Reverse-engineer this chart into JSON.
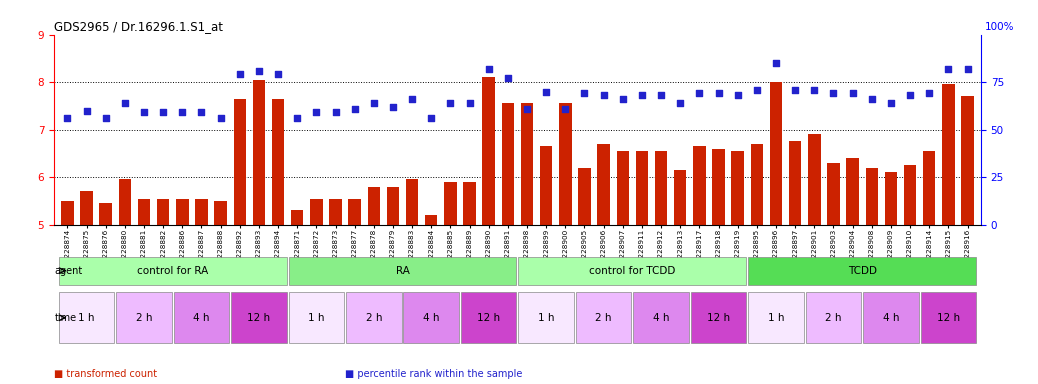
{
  "title": "GDS2965 / Dr.16296.1.S1_at",
  "samples": [
    "GSM228874",
    "GSM228875",
    "GSM228876",
    "GSM228880",
    "GSM228881",
    "GSM228882",
    "GSM228886",
    "GSM228887",
    "GSM228888",
    "GSM228892",
    "GSM228893",
    "GSM228894",
    "GSM228871",
    "GSM228872",
    "GSM228873",
    "GSM228877",
    "GSM228878",
    "GSM228879",
    "GSM228883",
    "GSM228884",
    "GSM228885",
    "GSM228889",
    "GSM228890",
    "GSM228891",
    "GSM228898",
    "GSM228899",
    "GSM228900",
    "GSM228905",
    "GSM228906",
    "GSM228907",
    "GSM228911",
    "GSM228912",
    "GSM228913",
    "GSM228917",
    "GSM228918",
    "GSM228919",
    "GSM228895",
    "GSM228896",
    "GSM228897",
    "GSM228901",
    "GSM228903",
    "GSM228904",
    "GSM228908",
    "GSM228909",
    "GSM228910",
    "GSM228914",
    "GSM228915",
    "GSM228916"
  ],
  "bar_values": [
    5.5,
    5.7,
    5.45,
    5.95,
    5.55,
    5.55,
    5.55,
    5.55,
    5.5,
    7.65,
    8.05,
    7.65,
    5.3,
    5.55,
    5.55,
    5.55,
    5.8,
    5.8,
    5.95,
    5.2,
    5.9,
    5.9,
    8.1,
    7.55,
    7.55,
    6.65,
    7.55,
    6.2,
    6.7,
    6.55,
    6.55,
    6.55,
    6.15,
    6.65,
    6.6,
    6.55,
    6.7,
    8.0,
    6.75,
    6.9,
    6.3,
    6.4,
    6.2,
    6.1,
    6.25,
    6.55,
    7.95,
    7.7
  ],
  "dot_values_pct": [
    56,
    60,
    56,
    64,
    59,
    59,
    59,
    59,
    56,
    79,
    81,
    79,
    56,
    59,
    59,
    61,
    64,
    62,
    66,
    56,
    64,
    64,
    82,
    77,
    61,
    70,
    61,
    69,
    68,
    66,
    68,
    68,
    64,
    69,
    69,
    68,
    71,
    85,
    71,
    71,
    69,
    69,
    66,
    64,
    68,
    69,
    82,
    82
  ],
  "bar_color": "#cc2200",
  "dot_color": "#2222cc",
  "ylim_left": [
    5,
    9
  ],
  "ylim_right": [
    0,
    100
  ],
  "yticks_left": [
    5,
    6,
    7,
    8,
    9
  ],
  "yticks_right": [
    0,
    25,
    50,
    75
  ],
  "right_axis_top_label": "100%",
  "agent_groups": [
    {
      "label": "control for RA",
      "start": 0,
      "end": 11,
      "color": "#aaffaa"
    },
    {
      "label": "RA",
      "start": 12,
      "end": 23,
      "color": "#88ee88"
    },
    {
      "label": "control for TCDD",
      "start": 24,
      "end": 35,
      "color": "#aaffaa"
    },
    {
      "label": "TCDD",
      "start": 36,
      "end": 47,
      "color": "#55dd55"
    }
  ],
  "time_labels_order": [
    "1 h",
    "2 h",
    "4 h",
    "12 h"
  ],
  "time_colors_list": [
    "#f8e8ff",
    "#eebbff",
    "#dd88ee",
    "#cc44cc"
  ],
  "agent_label": "agent",
  "time_label": "time",
  "legend_items": [
    {
      "label": "transformed count",
      "color": "#cc2200"
    },
    {
      "label": "percentile rank within the sample",
      "color": "#2222cc"
    }
  ]
}
